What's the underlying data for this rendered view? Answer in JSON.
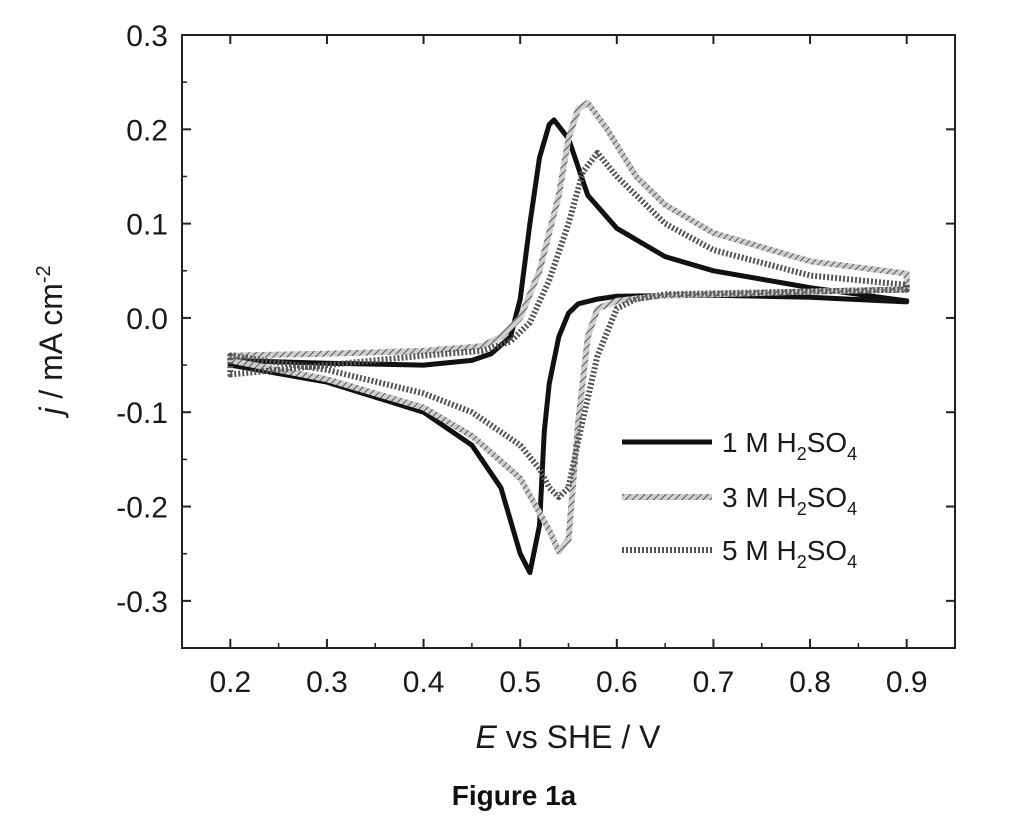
{
  "caption": "Figure 1a",
  "chart_data": {
    "type": "line",
    "xlabel_italic": "E",
    "xlabel_rest": " vs SHE / V",
    "ylabel_italic": "j",
    "ylabel_rest": " / mA cm",
    "ylabel_sup": "-2",
    "xlim": [
      0.15,
      0.95
    ],
    "ylim": [
      -0.35,
      0.3
    ],
    "xticks": [
      0.2,
      0.3,
      0.4,
      0.5,
      0.6,
      0.7,
      0.8,
      0.9
    ],
    "xtick_labels": [
      "0.2",
      "0.3",
      "0.4",
      "0.5",
      "0.6",
      "0.7",
      "0.8",
      "0.9"
    ],
    "yticks": [
      -0.3,
      -0.2,
      -0.1,
      0.0,
      0.1,
      0.2,
      0.3
    ],
    "ytick_labels": [
      "-0.3",
      "-0.2",
      "-0.1",
      "0.0",
      "0.1",
      "0.2",
      "0.3"
    ],
    "legend_position": "lower-right",
    "series": [
      {
        "legend": {
          "prefix": "1 M H",
          "sub1": "2",
          "mid": "SO",
          "sub2": "4"
        },
        "style": "solid-thick",
        "color": "#111111",
        "x": [
          0.2,
          0.3,
          0.4,
          0.45,
          0.47,
          0.49,
          0.5,
          0.51,
          0.52,
          0.53,
          0.535,
          0.55,
          0.57,
          0.6,
          0.65,
          0.7,
          0.8,
          0.9,
          0.9,
          0.8,
          0.7,
          0.6,
          0.58,
          0.56,
          0.55,
          0.54,
          0.53,
          0.525,
          0.52,
          0.51,
          0.5,
          0.48,
          0.45,
          0.4,
          0.3,
          0.2
        ],
        "y": [
          -0.045,
          -0.048,
          -0.05,
          -0.045,
          -0.038,
          -0.02,
          0.02,
          0.1,
          0.17,
          0.205,
          0.21,
          0.19,
          0.13,
          0.095,
          0.065,
          0.05,
          0.032,
          0.018,
          0.017,
          0.022,
          0.024,
          0.023,
          0.02,
          0.015,
          0.005,
          -0.02,
          -0.07,
          -0.12,
          -0.22,
          -0.27,
          -0.25,
          -0.18,
          -0.135,
          -0.1,
          -0.068,
          -0.05
        ]
      },
      {
        "legend": {
          "prefix": "3 M H",
          "sub1": "2",
          "mid": "SO",
          "sub2": "4"
        },
        "style": "hatched",
        "color": "#777777",
        "x": [
          0.2,
          0.3,
          0.4,
          0.46,
          0.48,
          0.5,
          0.52,
          0.54,
          0.55,
          0.56,
          0.57,
          0.59,
          0.62,
          0.65,
          0.7,
          0.8,
          0.9,
          0.9,
          0.8,
          0.7,
          0.65,
          0.6,
          0.58,
          0.57,
          0.56,
          0.55,
          0.54,
          0.53,
          0.5,
          0.45,
          0.4,
          0.3,
          0.2
        ],
        "y": [
          -0.04,
          -0.038,
          -0.035,
          -0.03,
          -0.02,
          0.0,
          0.05,
          0.13,
          0.19,
          0.222,
          0.228,
          0.2,
          0.15,
          0.12,
          0.09,
          0.06,
          0.047,
          0.03,
          0.028,
          0.025,
          0.024,
          0.018,
          0.01,
          -0.02,
          -0.11,
          -0.235,
          -0.248,
          -0.225,
          -0.17,
          -0.125,
          -0.095,
          -0.065,
          -0.045
        ]
      },
      {
        "legend": {
          "prefix": "5 M H",
          "sub1": "2",
          "mid": "SO",
          "sub2": "4"
        },
        "style": "dotted",
        "color": "#555555",
        "x": [
          0.2,
          0.3,
          0.4,
          0.46,
          0.49,
          0.51,
          0.53,
          0.55,
          0.565,
          0.58,
          0.6,
          0.65,
          0.7,
          0.8,
          0.9,
          0.9,
          0.8,
          0.7,
          0.65,
          0.62,
          0.6,
          0.58,
          0.56,
          0.55,
          0.54,
          0.53,
          0.52,
          0.5,
          0.45,
          0.4,
          0.3,
          0.2
        ],
        "y": [
          -0.06,
          -0.05,
          -0.04,
          -0.035,
          -0.025,
          -0.005,
          0.04,
          0.1,
          0.155,
          0.175,
          0.15,
          0.1,
          0.072,
          0.045,
          0.035,
          0.03,
          0.028,
          0.026,
          0.025,
          0.02,
          0.01,
          -0.04,
          -0.13,
          -0.18,
          -0.19,
          -0.18,
          -0.16,
          -0.135,
          -0.1,
          -0.08,
          -0.055,
          -0.04
        ]
      }
    ]
  }
}
